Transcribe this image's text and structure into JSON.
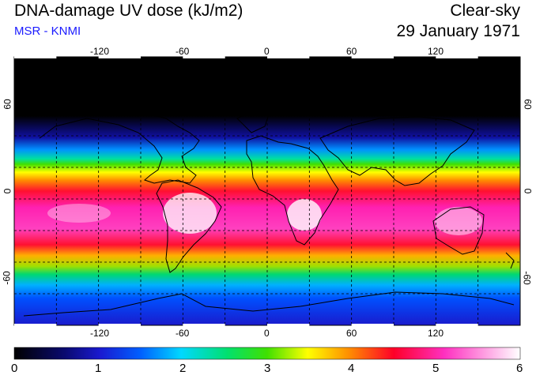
{
  "header": {
    "title": "DNA-damage UV dose (kJ/m2)",
    "subtitle": "MSR - KNMI",
    "sky_condition": "Clear-sky",
    "date": "29 January 1971"
  },
  "map": {
    "projection": "equirectangular",
    "longitude_ticks": [
      "-120",
      "-60",
      "0",
      "60",
      "120"
    ],
    "latitude_ticks": [
      "60",
      "0",
      "-60"
    ],
    "graticule": "dashed",
    "coastlines": true
  },
  "colorbar": {
    "ticks": [
      "0",
      "1",
      "2",
      "3",
      "4",
      "5",
      "6"
    ],
    "colors": [
      "#000000",
      "#1515c8",
      "#0060ff",
      "#00d8ff",
      "#00e070",
      "#40e000",
      "#ffff00",
      "#ff9000",
      "#ff0028",
      "#ff30c0",
      "#ffffff"
    ]
  },
  "colors": {
    "subtitle": "#1a1aff",
    "graticule": "#000000"
  }
}
